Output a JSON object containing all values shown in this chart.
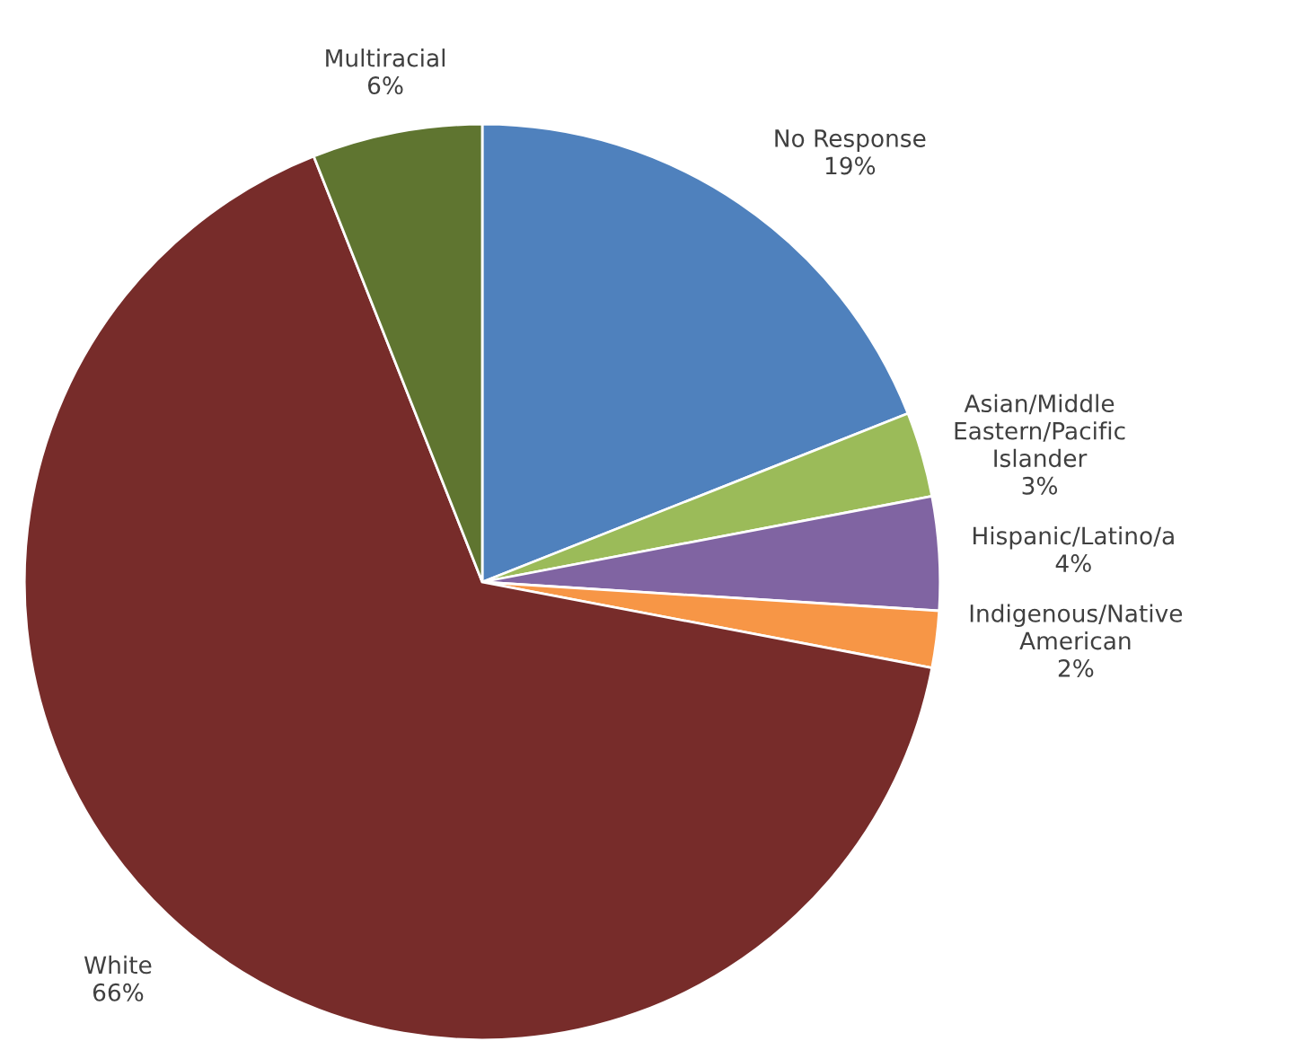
{
  "chart_data": {
    "type": "pie",
    "categories": [
      "No Response",
      "Asian/Middle\nEastern/Pacific\nIslander",
      "Hispanic/Latino/a",
      "Indigenous/Native\nAmerican",
      "White",
      "Multiracial"
    ],
    "values": [
      19,
      3,
      4,
      2,
      66,
      6
    ],
    "value_labels": [
      "19%",
      "3%",
      "4%",
      "2%",
      "66%",
      "6%"
    ],
    "colors": [
      "#4f81bd",
      "#9bbb59",
      "#8064a2",
      "#f79646",
      "#772c2a",
      "#5f7530"
    ]
  }
}
